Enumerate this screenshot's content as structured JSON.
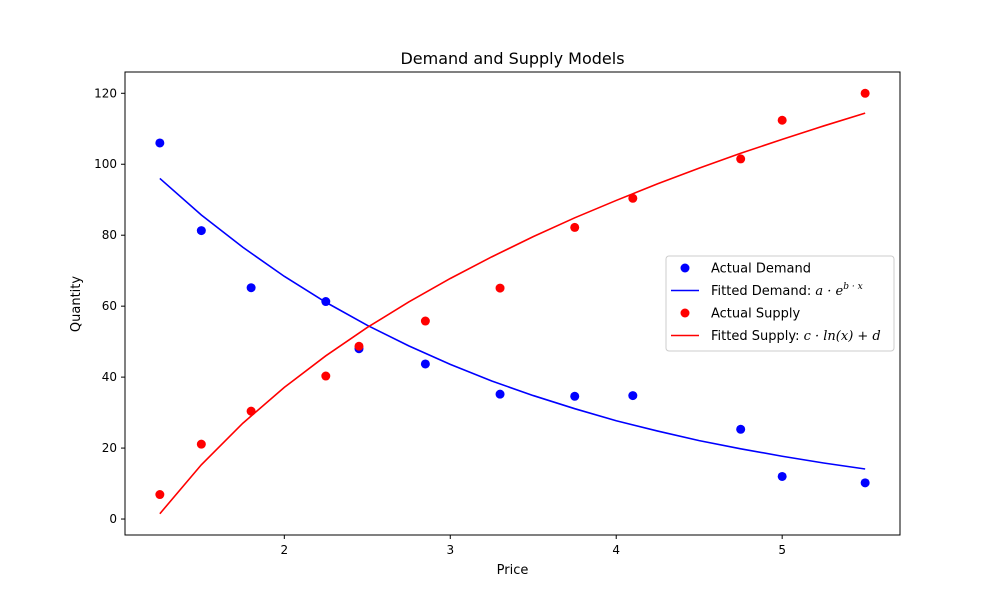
{
  "chart_data": {
    "type": "scatter",
    "title": "Demand and Supply Models",
    "xlabel": "Price",
    "ylabel": "Quantity",
    "xlim": [
      1.04,
      5.71
    ],
    "ylim": [
      -4.5,
      126
    ],
    "x_ticks": [
      2,
      3,
      4,
      5
    ],
    "y_ticks": [
      0,
      20,
      40,
      60,
      80,
      100,
      120
    ],
    "grid": false,
    "legend_position": "center-right",
    "series": [
      {
        "name": "Actual Demand",
        "kind": "scatter",
        "color": "#0000ff",
        "x": [
          1.25,
          1.5,
          1.8,
          2.25,
          2.45,
          2.85,
          3.3,
          3.75,
          4.1,
          4.75,
          5.0,
          5.5
        ],
        "y": [
          106,
          81.3,
          65.2,
          61.3,
          48,
          43.7,
          35.2,
          34.6,
          34.8,
          25.3,
          12,
          10.2
        ]
      },
      {
        "name": "Fitted Demand: a·e^{b·x}",
        "kind": "line",
        "color": "#0000ff",
        "legend_plain": "Fitted Demand: ",
        "legend_math": "a · e",
        "legend_sup": "b · x",
        "x": [
          1.25,
          1.5,
          1.75,
          2.0,
          2.25,
          2.5,
          2.75,
          3.0,
          3.25,
          3.5,
          3.75,
          4.0,
          4.25,
          4.5,
          4.75,
          5.0,
          5.25,
          5.5
        ],
        "y": [
          96.0,
          85.7,
          76.6,
          68.4,
          61.1,
          54.6,
          48.8,
          43.6,
          38.9,
          34.8,
          31.1,
          27.7,
          24.8,
          22.1,
          19.8,
          17.7,
          15.8,
          14.1
        ]
      },
      {
        "name": "Actual Supply",
        "kind": "scatter",
        "color": "#ff0000",
        "x": [
          1.25,
          1.5,
          1.8,
          2.25,
          2.45,
          2.85,
          3.3,
          3.75,
          4.1,
          4.75,
          5.0,
          5.5
        ],
        "y": [
          6.9,
          21.1,
          30.4,
          40.3,
          48.7,
          55.8,
          65.1,
          82.2,
          90.4,
          101.5,
          112.4,
          120
        ]
      },
      {
        "name": "Fitted Supply: c·ln(x)+d",
        "kind": "line",
        "color": "#ff0000",
        "legend_plain": "Fitted Supply: ",
        "legend_math": "c · ln(x) + d",
        "x": [
          1.25,
          1.5,
          1.75,
          2.0,
          2.25,
          2.5,
          2.75,
          3.0,
          3.25,
          3.5,
          3.75,
          4.0,
          4.25,
          4.5,
          4.75,
          5.0,
          5.25,
          5.5
        ],
        "y": [
          1.5,
          15.3,
          27.0,
          37.1,
          46.0,
          54.0,
          61.2,
          67.8,
          73.9,
          79.6,
          84.9,
          89.8,
          94.5,
          98.9,
          103.1,
          107.0,
          110.8,
          114.4
        ]
      }
    ]
  }
}
